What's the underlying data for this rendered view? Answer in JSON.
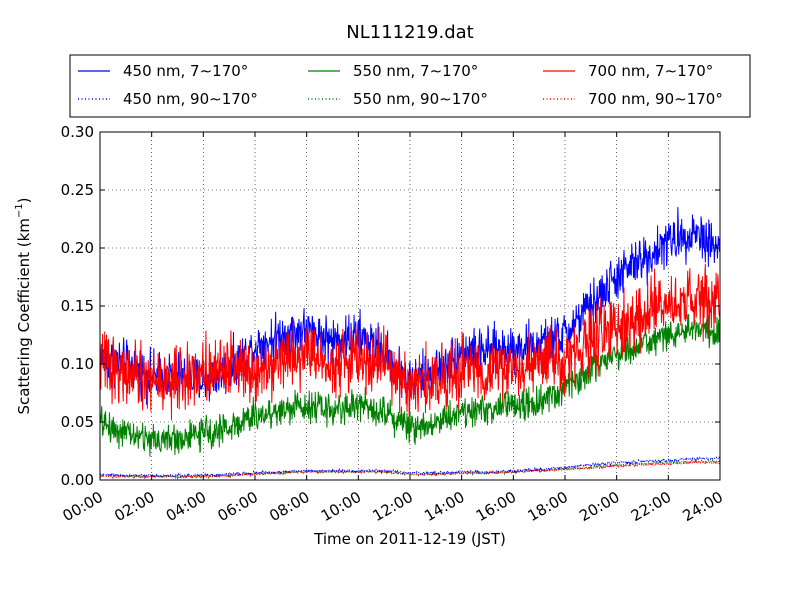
{
  "chart_data": {
    "type": "line",
    "title": "NL111219.dat",
    "xlabel": "Time on 2011-12-19 (JST)",
    "ylabel": "Scattering Coefficient (km",
    "ylabel_sup": "−1",
    "ylabel_close": ")",
    "xlim_hours": [
      0,
      24
    ],
    "ylim": [
      0,
      0.3
    ],
    "grid": true,
    "legend_position": "top, above plot",
    "x_ticks": [
      "00:00",
      "02:00",
      "04:00",
      "06:00",
      "08:00",
      "10:00",
      "12:00",
      "14:00",
      "16:00",
      "18:00",
      "20:00",
      "22:00",
      "24:00"
    ],
    "y_ticks": [
      "0.00",
      "0.05",
      "0.10",
      "0.15",
      "0.20",
      "0.25",
      "0.30"
    ],
    "series_profiles": {
      "hours": [
        0,
        1,
        2,
        3,
        4,
        5,
        6,
        7,
        8,
        9,
        10,
        11,
        12,
        13,
        14,
        15,
        16,
        17,
        18,
        19,
        20,
        21,
        22,
        23,
        24
      ],
      "450 nm, 7∼170°": [
        0.105,
        0.1,
        0.09,
        0.09,
        0.085,
        0.095,
        0.115,
        0.125,
        0.13,
        0.12,
        0.125,
        0.11,
        0.085,
        0.095,
        0.11,
        0.11,
        0.115,
        0.115,
        0.125,
        0.15,
        0.175,
        0.19,
        0.205,
        0.215,
        0.2
      ],
      "550 nm, 7∼170°": [
        0.05,
        0.04,
        0.035,
        0.035,
        0.04,
        0.045,
        0.055,
        0.06,
        0.065,
        0.06,
        0.065,
        0.06,
        0.045,
        0.05,
        0.06,
        0.06,
        0.065,
        0.065,
        0.08,
        0.095,
        0.11,
        0.115,
        0.125,
        0.13,
        0.125
      ],
      "700 nm, 7∼170°": [
        0.105,
        0.09,
        0.085,
        0.085,
        0.095,
        0.1,
        0.095,
        0.105,
        0.11,
        0.1,
        0.105,
        0.1,
        0.08,
        0.085,
        0.095,
        0.095,
        0.095,
        0.1,
        0.105,
        0.12,
        0.13,
        0.14,
        0.15,
        0.155,
        0.15
      ],
      "450 nm, 90∼170°": [
        0.005,
        0.004,
        0.004,
        0.004,
        0.004,
        0.005,
        0.006,
        0.007,
        0.008,
        0.008,
        0.008,
        0.008,
        0.006,
        0.006,
        0.007,
        0.007,
        0.008,
        0.009,
        0.011,
        0.013,
        0.015,
        0.016,
        0.017,
        0.018,
        0.019
      ],
      "550 nm, 90∼170°": [
        0.004,
        0.003,
        0.003,
        0.003,
        0.003,
        0.004,
        0.005,
        0.006,
        0.007,
        0.007,
        0.007,
        0.007,
        0.005,
        0.005,
        0.006,
        0.006,
        0.007,
        0.008,
        0.01,
        0.011,
        0.013,
        0.014,
        0.015,
        0.016,
        0.016
      ],
      "700 nm, 90∼170°": [
        0.003,
        0.003,
        0.003,
        0.003,
        0.003,
        0.004,
        0.005,
        0.006,
        0.007,
        0.007,
        0.007,
        0.007,
        0.005,
        0.005,
        0.006,
        0.006,
        0.007,
        0.008,
        0.009,
        0.01,
        0.012,
        0.013,
        0.014,
        0.015,
        0.015
      ]
    },
    "series": [
      {
        "name": "450 nm, 7∼170°",
        "color": "#0000ff",
        "style": "solid",
        "noise": 0.03
      },
      {
        "name": "550 nm, 7∼170°",
        "color": "#008000",
        "style": "solid",
        "noise": 0.02
      },
      {
        "name": "700 nm, 7∼170°",
        "color": "#ff0000",
        "style": "solid",
        "noise": 0.04
      },
      {
        "name": "450 nm, 90∼170°",
        "color": "#0000ff",
        "style": "dotted",
        "noise": 0.0015
      },
      {
        "name": "550 nm, 90∼170°",
        "color": "#008000",
        "style": "dotted",
        "noise": 0.0012
      },
      {
        "name": "700 nm, 90∼170°",
        "color": "#ff0000",
        "style": "dotted",
        "noise": 0.0012
      }
    ],
    "draw_order": [
      4,
      5,
      3,
      0,
      1,
      2
    ]
  }
}
